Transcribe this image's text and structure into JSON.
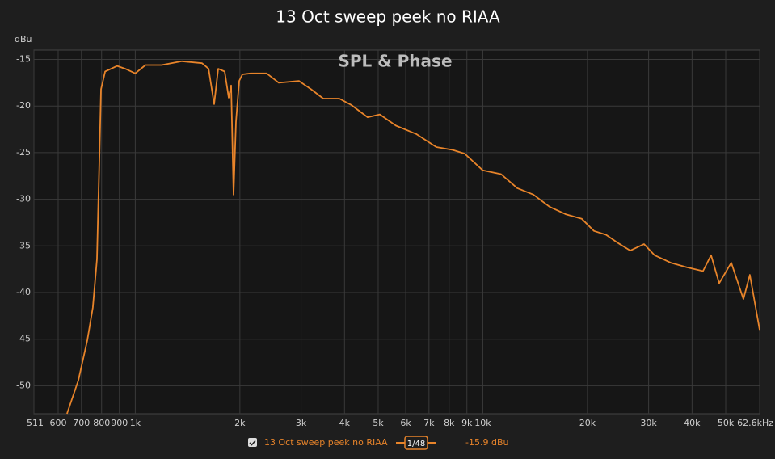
{
  "chart_data": {
    "type": "line",
    "title": "13 Oct sweep peek no RIAA",
    "watermark": "SPL & Phase",
    "ylabel": "dBu",
    "log_x": true,
    "grid": true,
    "xlim": [
      511,
      62600
    ],
    "ylim": [
      -53,
      -14
    ],
    "xticks": [
      511,
      600,
      700,
      800,
      900,
      {
        "value": 1000,
        "label": "1k"
      },
      {
        "value": 2000,
        "label": "2k"
      },
      {
        "value": 3000,
        "label": "3k"
      },
      {
        "value": 4000,
        "label": "4k"
      },
      {
        "value": 5000,
        "label": "5k"
      },
      {
        "value": 6000,
        "label": "6k"
      },
      {
        "value": 7000,
        "label": "7k"
      },
      {
        "value": 8000,
        "label": "8k"
      },
      {
        "value": 9000,
        "label": "9k"
      },
      {
        "value": 10000,
        "label": "10k"
      },
      {
        "value": 20000,
        "label": "20k"
      },
      {
        "value": 30000,
        "label": "30k"
      },
      {
        "value": 40000,
        "label": "40k"
      },
      {
        "value": 50000,
        "label": "50k"
      },
      {
        "value": 62600,
        "label": "62.6kHz"
      }
    ],
    "yticks": [
      -15,
      -20,
      -25,
      -30,
      -35,
      -40,
      -45,
      -50
    ],
    "series": [
      {
        "name": "13 Oct sweep peek no RIAA",
        "color": "#e8842a",
        "x": [
          636,
          686,
          728,
          755,
          776,
          788,
          797,
          819,
          887,
          936,
          1000,
          1070,
          1191,
          1362,
          1556,
          1625,
          1686,
          1732,
          1808,
          1857,
          1887,
          1918,
          1949,
          1991,
          2034,
          2146,
          2389,
          2588,
          2958,
          3206,
          3475,
          3866,
          4190,
          4663,
          5053,
          5626,
          6431,
          7349,
          8182,
          8866,
          10000,
          11283,
          12558,
          13977,
          15551,
          17313,
          19270,
          20884,
          22622,
          24513,
          26563,
          29091,
          31191,
          34717,
          38627,
          43016,
          45383,
          47873,
          51871,
          56210,
          58663,
          62600
        ],
        "values": [
          -53.0,
          -49.4,
          -45.1,
          -41.6,
          -36.4,
          -26.0,
          -18.2,
          -16.3,
          -15.7,
          -16.0,
          -16.5,
          -15.6,
          -15.6,
          -15.2,
          -15.4,
          -16.0,
          -19.8,
          -16.0,
          -16.3,
          -19.1,
          -17.8,
          -29.5,
          -21.7,
          -17.3,
          -16.6,
          -16.5,
          -16.5,
          -17.5,
          -17.3,
          -18.2,
          -19.2,
          -19.2,
          -19.9,
          -21.2,
          -20.9,
          -22.1,
          -23.0,
          -24.4,
          -24.7,
          -25.1,
          -26.9,
          -27.3,
          -28.8,
          -29.5,
          -30.8,
          -31.6,
          -32.1,
          -33.4,
          -33.8,
          -34.7,
          -35.5,
          -34.8,
          -36.0,
          -36.8,
          -37.3,
          -37.7,
          -36.0,
          -39.0,
          -36.8,
          -40.7,
          -38.1,
          -44.0
        ]
      }
    ],
    "smoothing": "1/48",
    "readout": "-15.9 dBu"
  }
}
